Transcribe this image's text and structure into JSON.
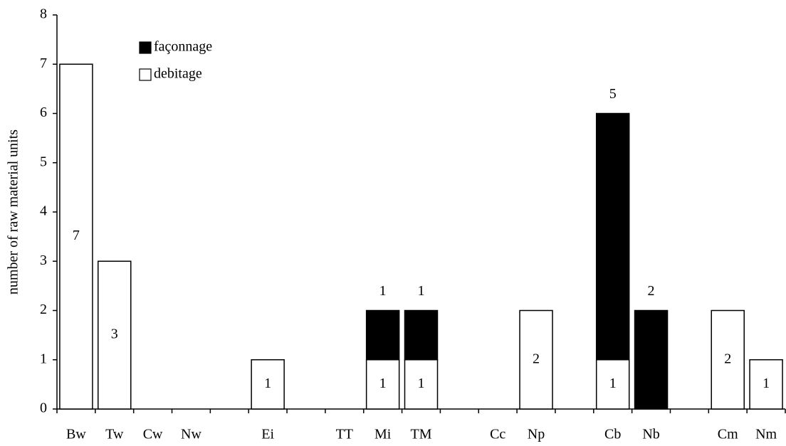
{
  "chart_data": {
    "type": "stacked_bar",
    "y_label": "number of raw material units",
    "categories": [
      "Bw",
      "Tw",
      "Cw",
      "Nw",
      null,
      "Ei",
      null,
      "TT",
      "Mi",
      "TM",
      null,
      "Cc",
      "Np",
      null,
      "Cb",
      "Nb",
      null,
      "Cm",
      "Nm"
    ],
    "series": [
      {
        "name": "debitage",
        "color": "#ffffff",
        "values": [
          7,
          3,
          0,
          0,
          null,
          1,
          null,
          0,
          1,
          1,
          null,
          0,
          2,
          null,
          1,
          0,
          null,
          2,
          1
        ]
      },
      {
        "name": "façonnage",
        "color": "#000000",
        "values": [
          0,
          0,
          0,
          0,
          null,
          0,
          null,
          0,
          1,
          1,
          null,
          0,
          0,
          null,
          5,
          2,
          null,
          0,
          0
        ]
      }
    ],
    "ylim": [
      0,
      8
    ],
    "yticks": [
      0,
      1,
      2,
      3,
      4,
      5,
      6,
      7,
      8
    ],
    "legend": "top-left"
  }
}
